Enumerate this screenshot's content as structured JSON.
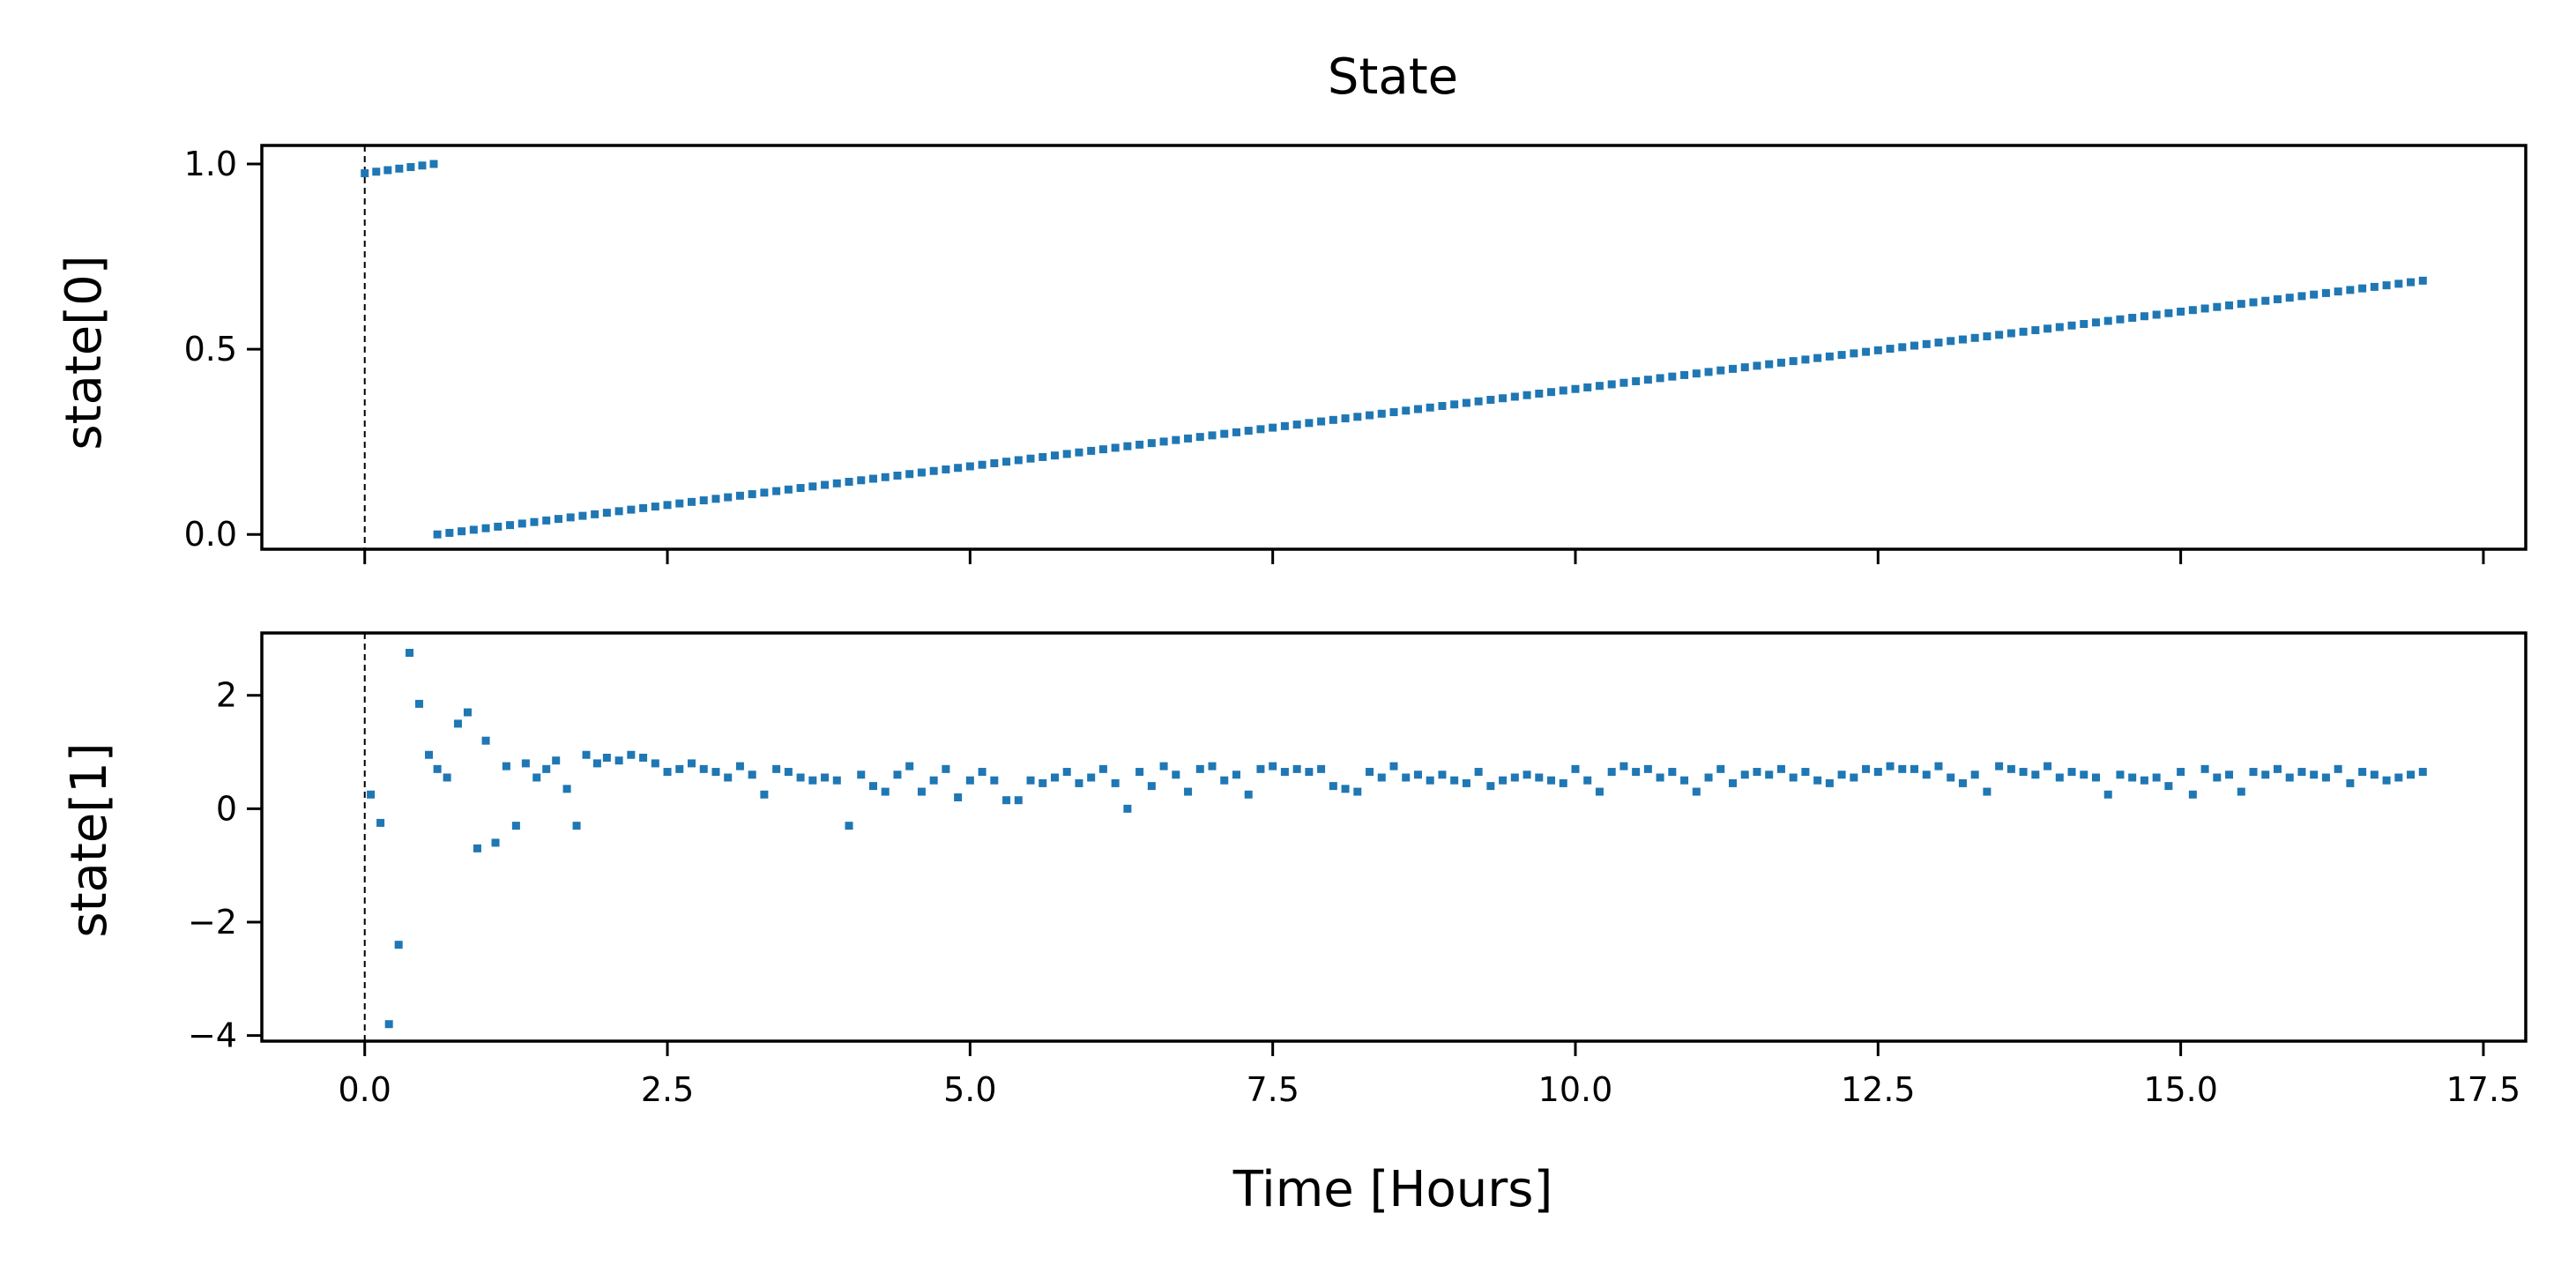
{
  "figure": {
    "title": "State",
    "xlabel": "Time [Hours]"
  },
  "chart_data": [
    {
      "type": "scatter",
      "title": "State",
      "ylabel": "state[0]",
      "xlabel": "",
      "xlim": [
        -0.85,
        17.85
      ],
      "ylim": [
        -0.04,
        1.05
      ],
      "xticks": [
        0.0,
        2.5,
        5.0,
        7.5,
        10.0,
        12.5,
        15.0,
        17.5
      ],
      "xtick_labels_visible": false,
      "yticks": [
        0.0,
        0.5,
        1.0
      ],
      "ytick_labels": [
        "0.0",
        "0.5",
        "1.0"
      ],
      "vline_x": 0.0,
      "series": [
        {
          "color": "#1f77b4",
          "marker": "square",
          "segments": [
            {
              "x_start": 0.0,
              "x_end": 0.57,
              "y_start": 0.975,
              "y_end": 1.0
            },
            {
              "x_start": 0.6,
              "x_end": 17.0,
              "y_start": 0.0,
              "y_end": 0.685
            }
          ]
        }
      ],
      "grid": false
    },
    {
      "type": "scatter",
      "ylabel": "state[1]",
      "xlabel": "Time [Hours]",
      "xlim": [
        -0.85,
        17.85
      ],
      "ylim": [
        -4.1,
        3.1
      ],
      "xticks": [
        0.0,
        2.5,
        5.0,
        7.5,
        10.0,
        12.5,
        15.0,
        17.5
      ],
      "xtick_labels": [
        "0.0",
        "2.5",
        "5.0",
        "7.5",
        "10.0",
        "12.5",
        "15.0",
        "17.5"
      ],
      "yticks": [
        -4,
        -2,
        0,
        2
      ],
      "ytick_labels": [
        "−4",
        "−2",
        "0",
        "2"
      ],
      "vline_x": 0.0,
      "series": [
        {
          "color": "#1f77b4",
          "marker": "square",
          "x": [
            0.05,
            0.13,
            0.2,
            0.28,
            0.37,
            0.45,
            0.53,
            0.6,
            0.68,
            0.77,
            0.85,
            0.93,
            1.0,
            1.08,
            1.17,
            1.25,
            1.33,
            1.42,
            1.5,
            1.58,
            1.67,
            1.75,
            1.83,
            1.92,
            2.0,
            2.1,
            2.2,
            2.3,
            2.4,
            2.5,
            2.6,
            2.7,
            2.8,
            2.9,
            3.0,
            3.1,
            3.2,
            3.3,
            3.4,
            3.5,
            3.6,
            3.7,
            3.8,
            3.9,
            4.0,
            4.1,
            4.2,
            4.3,
            4.4,
            4.5,
            4.6,
            4.7,
            4.8,
            4.9,
            5.0,
            5.1,
            5.2,
            5.3,
            5.4,
            5.5,
            5.6,
            5.7,
            5.8,
            5.9,
            6.0,
            6.1,
            6.2,
            6.3,
            6.4,
            6.5,
            6.6,
            6.7,
            6.8,
            6.9,
            7.0,
            7.1,
            7.2,
            7.3,
            7.4,
            7.5,
            7.6,
            7.7,
            7.8,
            7.9,
            8.0,
            8.1,
            8.2,
            8.3,
            8.4,
            8.5,
            8.6,
            8.7,
            8.8,
            8.9,
            9.0,
            9.1,
            9.2,
            9.3,
            9.4,
            9.5,
            9.6,
            9.7,
            9.8,
            9.9,
            10.0,
            10.1,
            10.2,
            10.3,
            10.4,
            10.5,
            10.6,
            10.7,
            10.8,
            10.9,
            11.0,
            11.1,
            11.2,
            11.3,
            11.4,
            11.5,
            11.6,
            11.7,
            11.8,
            11.9,
            12.0,
            12.1,
            12.2,
            12.3,
            12.4,
            12.5,
            12.6,
            12.7,
            12.8,
            12.9,
            13.0,
            13.1,
            13.2,
            13.3,
            13.4,
            13.5,
            13.6,
            13.7,
            13.8,
            13.9,
            14.0,
            14.1,
            14.2,
            14.3,
            14.4,
            14.5,
            14.6,
            14.7,
            14.8,
            14.9,
            15.0,
            15.1,
            15.2,
            15.3,
            15.4,
            15.5,
            15.6,
            15.7,
            15.8,
            15.9,
            16.0,
            16.1,
            16.2,
            16.3,
            16.4,
            16.5,
            16.6,
            16.7,
            16.8,
            16.9,
            17.0
          ],
          "y": [
            0.25,
            -0.25,
            -3.8,
            -2.4,
            2.75,
            1.85,
            0.95,
            0.7,
            0.55,
            1.5,
            1.7,
            -0.7,
            1.2,
            -0.6,
            0.75,
            -0.3,
            0.8,
            0.55,
            0.7,
            0.85,
            0.35,
            -0.3,
            0.95,
            0.8,
            0.9,
            0.85,
            0.95,
            0.9,
            0.8,
            0.65,
            0.7,
            0.8,
            0.7,
            0.65,
            0.55,
            0.75,
            0.6,
            0.25,
            0.7,
            0.65,
            0.55,
            0.5,
            0.55,
            0.5,
            -0.3,
            0.6,
            0.4,
            0.3,
            0.6,
            0.75,
            0.3,
            0.5,
            0.7,
            0.2,
            0.5,
            0.65,
            0.5,
            0.15,
            0.15,
            0.5,
            0.45,
            0.55,
            0.65,
            0.45,
            0.55,
            0.7,
            0.45,
            0.0,
            0.65,
            0.4,
            0.75,
            0.6,
            0.3,
            0.7,
            0.75,
            0.5,
            0.6,
            0.25,
            0.7,
            0.75,
            0.65,
            0.7,
            0.65,
            0.7,
            0.4,
            0.35,
            0.3,
            0.65,
            0.55,
            0.75,
            0.55,
            0.6,
            0.5,
            0.6,
            0.5,
            0.45,
            0.65,
            0.4,
            0.5,
            0.55,
            0.6,
            0.55,
            0.5,
            0.45,
            0.7,
            0.5,
            0.3,
            0.65,
            0.75,
            0.65,
            0.7,
            0.55,
            0.65,
            0.5,
            0.3,
            0.55,
            0.7,
            0.45,
            0.6,
            0.65,
            0.6,
            0.7,
            0.55,
            0.65,
            0.5,
            0.45,
            0.6,
            0.55,
            0.7,
            0.65,
            0.75,
            0.7,
            0.7,
            0.6,
            0.75,
            0.55,
            0.45,
            0.6,
            0.3,
            0.75,
            0.7,
            0.65,
            0.6,
            0.75,
            0.55,
            0.65,
            0.6,
            0.55,
            0.25,
            0.6,
            0.55,
            0.5,
            0.55,
            0.4,
            0.65,
            0.25,
            0.7,
            0.55,
            0.6,
            0.3,
            0.65,
            0.6,
            0.7,
            0.55,
            0.65,
            0.6,
            0.55,
            0.7,
            0.45,
            0.65,
            0.6,
            0.5,
            0.55,
            0.6,
            0.65
          ]
        }
      ],
      "grid": false
    }
  ]
}
